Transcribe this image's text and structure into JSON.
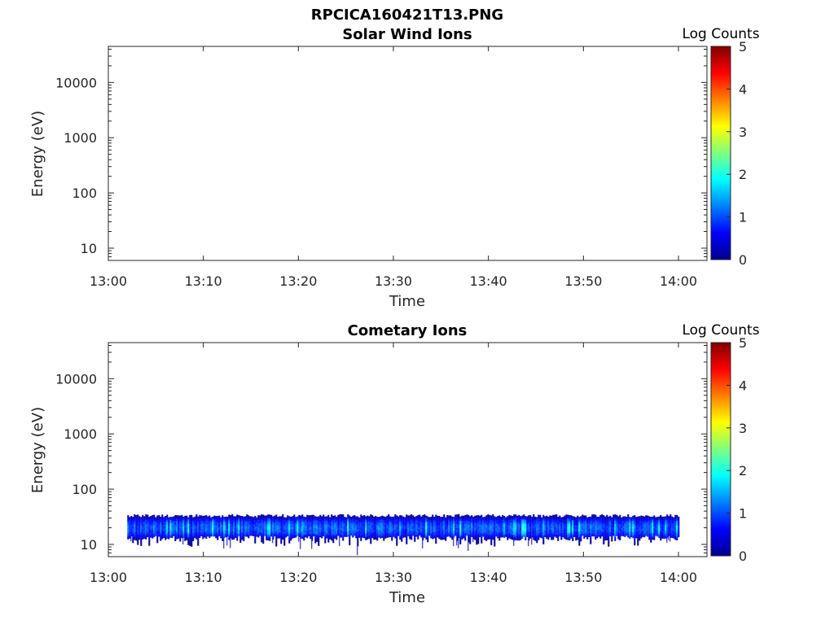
{
  "figure": {
    "title": "RPCICA160421T13.PNG"
  },
  "colorbar": {
    "label": "Log Counts",
    "ticks": [
      "0",
      "1",
      "2",
      "3",
      "4",
      "5"
    ],
    "range": [
      0,
      5
    ]
  },
  "colors": {
    "jet": [
      "#00008f",
      "#0000ff",
      "#0080ff",
      "#00ffff",
      "#80ff80",
      "#ffff00",
      "#ff8000",
      "#ff0000",
      "#800000"
    ],
    "axis": "#262626"
  },
  "chart_data": [
    {
      "type": "heatmap",
      "title": "Solar Wind Ions",
      "xlabel": "Time",
      "ylabel": "Energy (eV)",
      "x_ticks": [
        "13:00",
        "13:10",
        "13:20",
        "13:30",
        "13:40",
        "13:50",
        "14:00"
      ],
      "y_ticks": [
        "10",
        "100",
        "1000",
        "10000"
      ],
      "y_scale": "log",
      "xlim": [
        "13:00",
        "14:03"
      ],
      "ylim": [
        6,
        45000
      ],
      "colorbar_label": "Log Counts",
      "colorbar_range": [
        0,
        5
      ],
      "data": "empty"
    },
    {
      "type": "heatmap",
      "title": "Cometary Ions",
      "xlabel": "Time",
      "ylabel": "Energy (eV)",
      "x_ticks": [
        "13:00",
        "13:10",
        "13:20",
        "13:30",
        "13:40",
        "13:50",
        "14:00"
      ],
      "y_ticks": [
        "10",
        "100",
        "1000",
        "10000"
      ],
      "y_scale": "log",
      "xlim": [
        "13:00",
        "14:03"
      ],
      "ylim": [
        6,
        45000
      ],
      "colorbar_label": "Log Counts",
      "colorbar_range": [
        0,
        5
      ],
      "band": {
        "time_start": "13:02",
        "time_end": "14:00",
        "energy_low_eV": 13,
        "energy_high_eV": 33,
        "energy_core_eV": 20,
        "log_counts_typical": 1.0,
        "log_counts_peak": 1.8
      }
    }
  ]
}
